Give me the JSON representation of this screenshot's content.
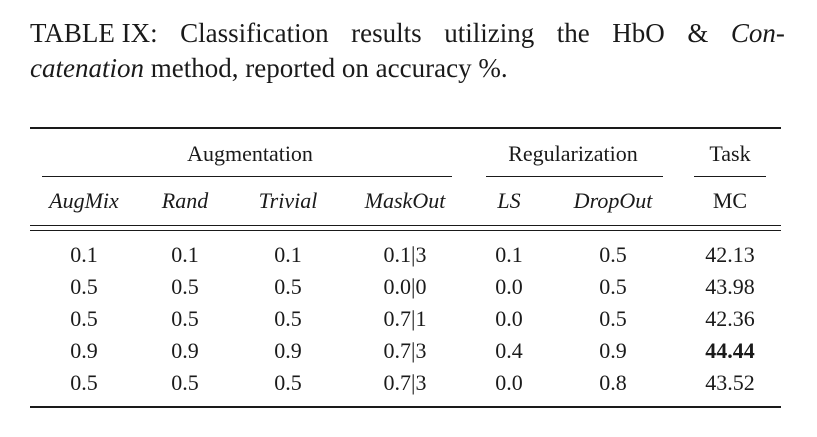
{
  "caption": {
    "label": "TABLE IX:",
    "words_line1": [
      "Classification",
      "results",
      "utilizing",
      "the",
      "HbO",
      "&"
    ],
    "italic_part1": "Con-",
    "italic_part2": "catenation",
    "rest": "method, reported on accuracy %."
  },
  "table": {
    "groups": {
      "augmentation": "Augmentation",
      "regularization": "Regularization",
      "task": "Task"
    },
    "columns": [
      "AugMix",
      "Rand",
      "Trivial",
      "MaskOut",
      "LS",
      "DropOut",
      "MC"
    ],
    "rows": [
      [
        "0.1",
        "0.1",
        "0.1",
        "0.1|3",
        "0.1",
        "0.5",
        "42.13"
      ],
      [
        "0.5",
        "0.5",
        "0.5",
        "0.0|0",
        "0.0",
        "0.5",
        "43.98"
      ],
      [
        "0.5",
        "0.5",
        "0.5",
        "0.7|1",
        "0.0",
        "0.5",
        "42.36"
      ],
      [
        "0.9",
        "0.9",
        "0.9",
        "0.7|3",
        "0.4",
        "0.9",
        "44.44"
      ],
      [
        "0.5",
        "0.5",
        "0.5",
        "0.7|3",
        "0.0",
        "0.8",
        "43.52"
      ]
    ],
    "best": {
      "row": 3,
      "col": 6
    }
  }
}
